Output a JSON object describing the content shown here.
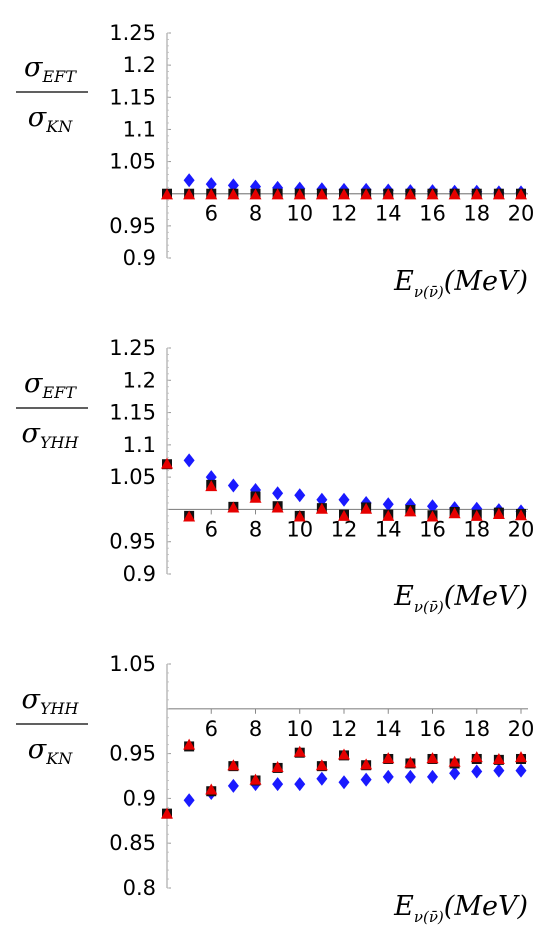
{
  "chart_data": [
    {
      "type": "scatter",
      "ylabel_num": {
        "main": "σ",
        "sub": "EFT"
      },
      "ylabel_den": {
        "main": "σ",
        "sub": "KN"
      },
      "xlabel": {
        "main": "E",
        "sub": "ν(ν̄)",
        "tail": "(MeV)"
      },
      "xlim": [
        4,
        20
      ],
      "ylim": [
        0.9,
        1.25
      ],
      "yticks": [
        "0.9",
        "0.95",
        "1.05",
        "1.1",
        "1.15",
        "1.2",
        "1.25"
      ],
      "yticks_values": [
        0.9,
        0.95,
        1.05,
        1.1,
        1.15,
        1.2,
        1.25
      ],
      "xticks": [
        "6",
        "8",
        "10",
        "12",
        "14",
        "16",
        "18",
        "20"
      ],
      "xticks_values": [
        6,
        8,
        10,
        12,
        14,
        16,
        18,
        20
      ],
      "reference_line": 1.0,
      "series": [
        {
          "marker": "diamond",
          "color": "#1a1aff",
          "x": [
            5,
            6,
            7,
            8,
            9,
            10,
            11,
            12,
            13,
            14,
            15,
            16,
            17,
            18,
            19,
            20
          ],
          "values": [
            1.021,
            1.015,
            1.013,
            1.011,
            1.009,
            1.008,
            1.007,
            1.006,
            1.006,
            1.005,
            1.004,
            1.004,
            1.003,
            1.003,
            1.002,
            1.002
          ]
        },
        {
          "marker": "square",
          "color": "#111111",
          "x": [
            4,
            5,
            6,
            7,
            8,
            9,
            10,
            11,
            12,
            13,
            14,
            15,
            16,
            17,
            18,
            19,
            20
          ],
          "values": [
            1.0,
            1.0,
            1.0,
            1.0,
            1.0,
            1.0,
            1.0,
            1.0,
            1.0,
            1.0,
            1.0,
            1.0,
            1.0,
            1.0,
            1.0,
            1.0,
            1.0
          ]
        },
        {
          "marker": "triangle",
          "color": "#e60000",
          "x": [
            4,
            5,
            6,
            7,
            8,
            9,
            10,
            11,
            12,
            13,
            14,
            15,
            16,
            17,
            18,
            19,
            20
          ],
          "values": [
            0.999,
            0.999,
            0.999,
            0.999,
            0.999,
            0.999,
            0.999,
            0.999,
            0.999,
            0.999,
            0.999,
            0.999,
            0.999,
            0.999,
            0.999,
            0.999,
            0.999
          ]
        }
      ]
    },
    {
      "type": "scatter",
      "ylabel_num": {
        "main": "σ",
        "sub": "EFT"
      },
      "ylabel_den": {
        "main": "σ",
        "sub": "YHH"
      },
      "xlabel": {
        "main": "E",
        "sub": "ν(ν̄)",
        "tail": "(MeV)"
      },
      "xlim": [
        4,
        20
      ],
      "ylim": [
        0.9,
        1.25
      ],
      "yticks": [
        "0.9",
        "0.95",
        "1.05",
        "1.1",
        "1.15",
        "1.2",
        "1.25"
      ],
      "yticks_values": [
        0.9,
        0.95,
        1.05,
        1.1,
        1.15,
        1.2,
        1.25
      ],
      "xticks": [
        "6",
        "8",
        "10",
        "12",
        "14",
        "16",
        "18",
        "20"
      ],
      "xticks_values": [
        6,
        8,
        10,
        12,
        14,
        16,
        18,
        20
      ],
      "reference_line": 1.0,
      "series": [
        {
          "marker": "diamond",
          "color": "#1a1aff",
          "x": [
            5,
            6,
            7,
            8,
            9,
            10,
            11,
            12,
            13,
            14,
            15,
            16,
            17,
            18,
            19,
            20
          ],
          "values": [
            1.076,
            1.05,
            1.037,
            1.03,
            1.025,
            1.022,
            1.015,
            1.015,
            1.01,
            1.008,
            1.007,
            1.005,
            1.002,
            1.001,
            0.999,
            0.997
          ]
        },
        {
          "marker": "square",
          "color": "#111111",
          "x": [
            4,
            5,
            6,
            7,
            8,
            9,
            10,
            11,
            12,
            13,
            14,
            15,
            16,
            17,
            18,
            19,
            20
          ],
          "values": [
            1.07,
            0.99,
            1.038,
            1.004,
            1.02,
            1.005,
            0.99,
            1.002,
            0.992,
            1.003,
            0.992,
            0.999,
            0.991,
            0.996,
            0.992,
            0.995,
            0.993
          ]
        },
        {
          "marker": "triangle",
          "color": "#e60000",
          "x": [
            4,
            5,
            6,
            7,
            8,
            9,
            10,
            11,
            12,
            13,
            14,
            15,
            16,
            17,
            18,
            19,
            20
          ],
          "values": [
            1.071,
            0.989,
            1.036,
            1.003,
            1.018,
            1.003,
            0.989,
            1.001,
            0.99,
            1.001,
            0.99,
            0.997,
            0.989,
            0.994,
            0.99,
            0.993,
            0.991
          ]
        }
      ]
    },
    {
      "type": "scatter",
      "ylabel_num": {
        "main": "σ",
        "sub": "YHH"
      },
      "ylabel_den": {
        "main": "σ",
        "sub": "KN"
      },
      "xlabel": {
        "main": "E",
        "sub": "ν(ν̄)",
        "tail": "(MeV)"
      },
      "xlim": [
        4,
        20
      ],
      "ylim": [
        0.8,
        1.05
      ],
      "yticks": [
        "0.8",
        "0.85",
        "0.9",
        "0.95",
        "1.05"
      ],
      "yticks_values": [
        0.8,
        0.85,
        0.9,
        0.95,
        1.05
      ],
      "xticks": [
        "6",
        "8",
        "10",
        "12",
        "14",
        "16",
        "18",
        "20"
      ],
      "xticks_values": [
        6,
        8,
        10,
        12,
        14,
        16,
        18,
        20
      ],
      "reference_line": 1.0,
      "series": [
        {
          "marker": "diamond",
          "color": "#1a1aff",
          "x": [
            5,
            6,
            7,
            8,
            9,
            10,
            11,
            12,
            13,
            14,
            15,
            16,
            17,
            18,
            19,
            20
          ],
          "values": [
            0.898,
            0.906,
            0.914,
            0.916,
            0.916,
            0.916,
            0.922,
            0.918,
            0.921,
            0.924,
            0.924,
            0.924,
            0.928,
            0.93,
            0.931,
            0.931
          ]
        },
        {
          "marker": "square",
          "color": "#111111",
          "x": [
            4,
            5,
            6,
            7,
            8,
            9,
            10,
            11,
            12,
            13,
            14,
            15,
            16,
            17,
            18,
            19,
            20
          ],
          "values": [
            0.883,
            0.958,
            0.908,
            0.936,
            0.92,
            0.934,
            0.951,
            0.936,
            0.948,
            0.937,
            0.944,
            0.939,
            0.944,
            0.939,
            0.944,
            0.943,
            0.944
          ]
        },
        {
          "marker": "triangle",
          "color": "#e60000",
          "x": [
            4,
            5,
            6,
            7,
            8,
            9,
            10,
            11,
            12,
            13,
            14,
            15,
            16,
            17,
            18,
            19,
            20
          ],
          "values": [
            0.883,
            0.96,
            0.91,
            0.937,
            0.921,
            0.935,
            0.952,
            0.937,
            0.949,
            0.938,
            0.945,
            0.94,
            0.945,
            0.941,
            0.946,
            0.944,
            0.946
          ]
        }
      ]
    }
  ]
}
